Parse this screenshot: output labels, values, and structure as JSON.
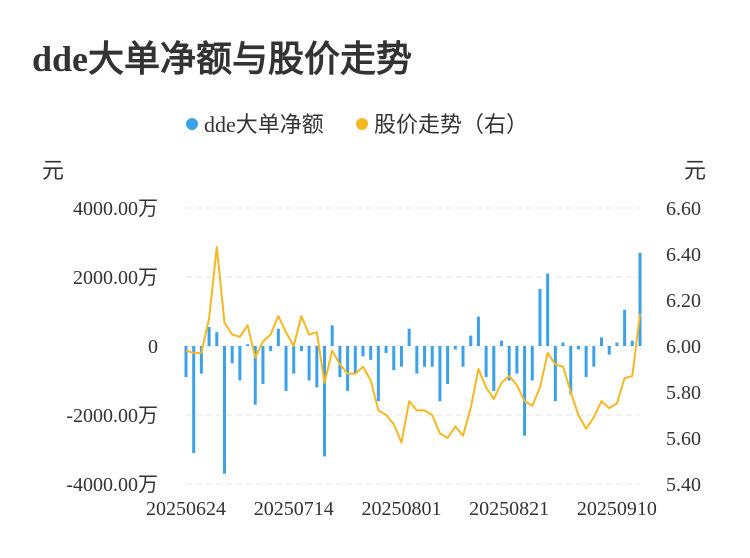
{
  "title": "dde大单净额与股价走势",
  "legend": [
    {
      "label": "dde大单净额",
      "color": "#3ba1e8"
    },
    {
      "label": "股价走势（右）",
      "color": "#f5b823"
    }
  ],
  "chart_data": {
    "type": "bar+line",
    "title": "dde大单净额与股价走势",
    "left_axis": {
      "unit": "元",
      "ticks": [
        "4000.00万",
        "2000.00万",
        "0",
        "-2000.00万",
        "-4000.00万"
      ],
      "range": [
        -4000,
        4000
      ]
    },
    "right_axis": {
      "unit": "元",
      "ticks": [
        "6.60",
        "6.40",
        "6.20",
        "6.00",
        "5.80",
        "5.60",
        "5.40"
      ],
      "range": [
        5.4,
        6.6
      ]
    },
    "x_ticks": [
      "20250624",
      "20250714",
      "20250801",
      "20250821",
      "20250910"
    ],
    "x_tick_index": [
      0,
      14,
      28,
      42,
      56
    ],
    "grid": true,
    "legend_position": "top-center",
    "series": [
      {
        "name": "dde大单净额",
        "type": "bar",
        "axis": "left",
        "color": "#3ba1e8",
        "values": [
          -900,
          -3100,
          -800,
          550,
          400,
          -3700,
          -500,
          -1000,
          50,
          -1700,
          -1100,
          -150,
          500,
          -1300,
          -800,
          -150,
          -1000,
          -1200,
          -3200,
          600,
          -900,
          -1300,
          -800,
          -300,
          -400,
          -1600,
          -200,
          -700,
          -600,
          500,
          -800,
          -600,
          -600,
          -1600,
          -1100,
          -100,
          -600,
          300,
          850,
          -900,
          -1300,
          150,
          -1000,
          -800,
          -2600,
          -1000,
          1650,
          2100,
          -1600,
          100,
          -1400,
          -100,
          -900,
          -600,
          250,
          -250,
          100,
          1050,
          150,
          2700
        ]
      },
      {
        "name": "股价走势（右）",
        "type": "line",
        "axis": "right",
        "color": "#f5b823",
        "values": [
          5.98,
          5.97,
          5.97,
          6.12,
          6.43,
          6.1,
          6.05,
          6.04,
          6.09,
          5.95,
          6.02,
          6.05,
          6.13,
          6.06,
          6.0,
          6.13,
          6.05,
          6.06,
          5.84,
          5.98,
          5.92,
          5.88,
          5.88,
          5.91,
          5.85,
          5.72,
          5.7,
          5.66,
          5.58,
          5.76,
          5.72,
          5.72,
          5.7,
          5.62,
          5.6,
          5.65,
          5.61,
          5.73,
          5.9,
          5.82,
          5.77,
          5.84,
          5.87,
          5.83,
          5.76,
          5.74,
          5.82,
          5.97,
          5.92,
          5.91,
          5.8,
          5.7,
          5.64,
          5.69,
          5.76,
          5.73,
          5.75,
          5.86,
          5.87,
          6.14
        ]
      }
    ]
  }
}
